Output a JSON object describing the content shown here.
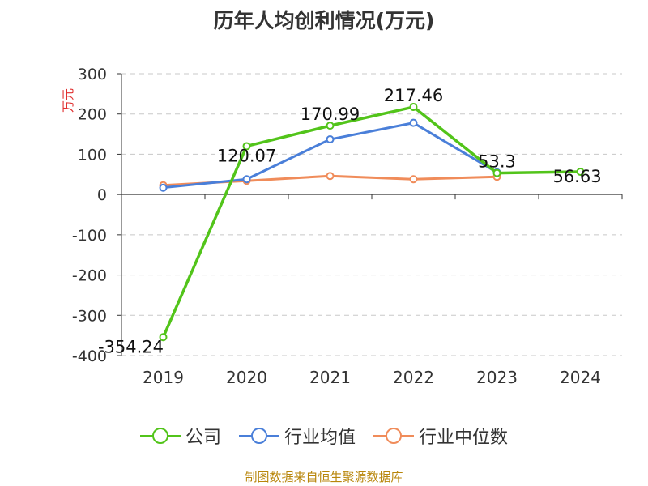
{
  "chart_data": {
    "type": "line",
    "title": "历年人均创利情况(万元)",
    "ylabel": "万元",
    "xlabel": "",
    "categories": [
      "2019",
      "2020",
      "2021",
      "2022",
      "2023",
      "2024"
    ],
    "ylim": [
      -400,
      300
    ],
    "yticks": [
      "300",
      "200",
      "100",
      "0",
      "-100",
      "-200",
      "-300",
      "-400"
    ],
    "ytick_values": [
      300,
      200,
      100,
      0,
      -100,
      -200,
      -300,
      -400
    ],
    "grid": true,
    "legend_position": "bottom",
    "series": [
      {
        "name": "公司",
        "color": "#52c41a",
        "values": [
          -354.24,
          120.07,
          170.99,
          217.46,
          53.3,
          56.63
        ],
        "labels": [
          "-354.24",
          "120.07",
          "170.99",
          "217.46",
          "53.3",
          "56.63"
        ]
      },
      {
        "name": "行业均值",
        "color": "#4a7fd9",
        "values": [
          17,
          38,
          137,
          178,
          55,
          null
        ]
      },
      {
        "name": "行业中位数",
        "color": "#f08c5a",
        "values": [
          23,
          34,
          46,
          38,
          44,
          null
        ]
      }
    ]
  },
  "source": "制图数据来自恒生聚源数据库"
}
